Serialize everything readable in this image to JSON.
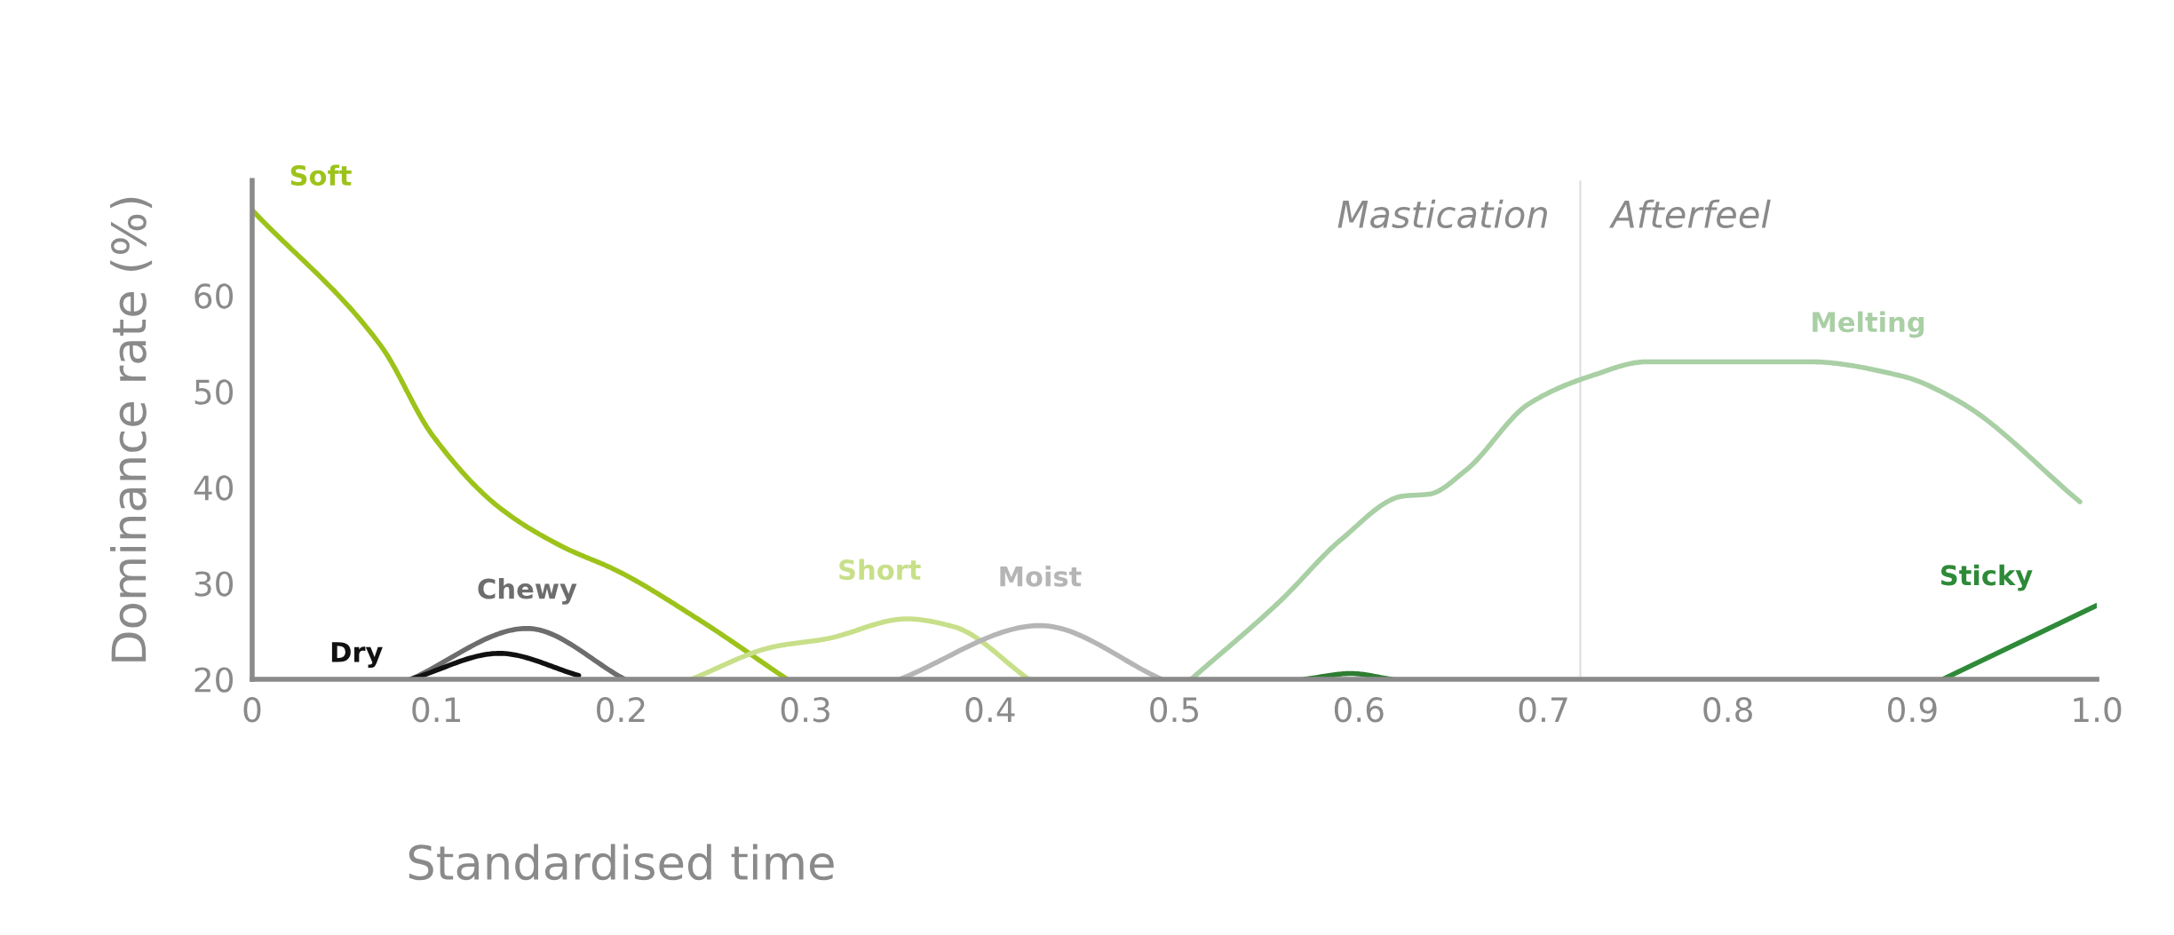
{
  "chart_data": {
    "type": "line",
    "xlabel": "Standardised time",
    "ylabel": "Dominance rate (%)",
    "xlim": [
      0,
      1.0
    ],
    "ylim": [
      20,
      72
    ],
    "xticks": [
      0,
      0.1,
      0.2,
      0.3,
      0.4,
      0.5,
      0.6,
      0.7,
      0.8,
      0.9,
      {
        "value": 1.0,
        "label": "1.0"
      }
    ],
    "yticks": [
      20,
      30,
      40,
      50,
      60
    ],
    "grid": false,
    "legend": false,
    "marker": "none",
    "line_style": "solid",
    "ref_lines": [
      {
        "axis": "x",
        "value": 0.72,
        "color": "#dddddd"
      }
    ],
    "annotations": [
      "Mastication",
      "Afterfeel"
    ],
    "series": [
      {
        "name": "Soft",
        "color": "#9dc31b",
        "x": [
          0,
          0.07,
          0.0975,
          0.134,
          0.1685,
          0.198,
          0.2415,
          0.29
        ],
        "values": [
          68.9,
          54.7,
          45.5,
          37.9,
          33.8,
          31.3,
          26.3,
          20
        ]
      },
      {
        "name": "Chewy",
        "color": "#6d6d6d",
        "x": [
          0.086,
          0.149,
          0.202
        ],
        "values": [
          20,
          25.3,
          20
        ]
      },
      {
        "name": "Dry",
        "color": "#111111",
        "x": [
          0.086,
          0.134,
          0.177
        ],
        "values": [
          20,
          22.7,
          20.4
        ]
      },
      {
        "name": "Short",
        "color": "#c8df8a",
        "x": [
          0.238,
          0.283,
          0.311,
          0.355,
          0.38,
          0.421
        ],
        "values": [
          20,
          23.4,
          24.2,
          26.3,
          25.5,
          20
        ]
      },
      {
        "name": "Moist",
        "color": "#b5b5b5",
        "x": [
          0.351,
          0.427,
          0.493
        ],
        "values": [
          20,
          25.6,
          20
        ]
      },
      {
        "color": "#2e7d32",
        "x": [
          0.5705,
          0.5956,
          0.6176
        ],
        "values": [
          20,
          20.6,
          20
        ]
      },
      {
        "name": "Melting",
        "color": "#a9cfa5",
        "x": [
          0.509,
          0.557,
          0.5905,
          0.624,
          0.638,
          0.658,
          0.692,
          0.7255,
          0.756,
          0.8437,
          0.8945,
          0.925,
          0.9908
        ],
        "values": [
          20,
          28.1,
          34.6,
          39.1,
          39.3,
          41.8,
          48.7,
          51.6,
          53.1,
          53.1,
          51.6,
          49.0,
          38.5
        ]
      },
      {
        "name": "Sticky",
        "color": "#2e8a38",
        "x": [
          0.9165,
          1.0
        ],
        "values": [
          20,
          27.7
        ]
      }
    ]
  }
}
